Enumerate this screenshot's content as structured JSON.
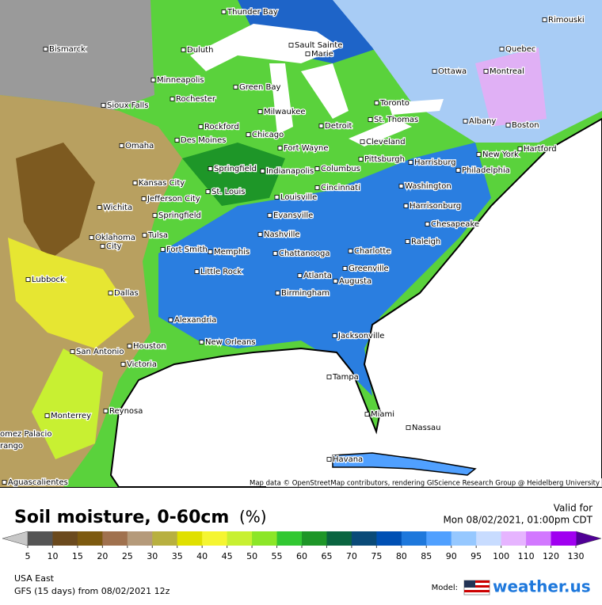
{
  "map": {
    "cities": [
      "Thunder Bay",
      "Bismarck",
      "Duluth",
      "Sault Sainte",
      "Marie",
      "Rimouski",
      "Quebec",
      "Ottawa",
      "Montreal",
      "Minneapolis",
      "Green Bay",
      "Rochester",
      "Sioux Falls",
      "Milwaukee",
      "Toronto",
      "Albany",
      "Boston",
      "Rockford",
      "Detroit",
      "St. Thomas",
      "Des Moines",
      "Chicago",
      "Cleveland",
      "Hartford",
      "Omaha",
      "Fort Wayne",
      "New York",
      "Pittsburgh",
      "Harrisburg",
      "Philadelphia",
      "Springfield",
      "Indianapolis",
      "Columbus",
      "Kansas City",
      "Cincinnati",
      "Washington",
      "St. Louis",
      "Louisville",
      "Jefferson City",
      "Wichita",
      "Springfield",
      "Evansville",
      "Harrisonburg",
      "Chesapeake",
      "Nashville",
      "Tulsa",
      "Oklahoma",
      "City",
      "Raleigh",
      "Fort Smith",
      "Memphis",
      "Chattanooga",
      "Charlotte",
      "Little Rock",
      "Greenville",
      "Atlanta",
      "Augusta",
      "Lubbock",
      "Dallas",
      "Birmingham",
      "Alexandria",
      "Houston",
      "New Orleans",
      "Jacksonville",
      "San Antonio",
      "Victoria",
      "Tampa",
      "Reynosa",
      "Monterrey",
      "Miami",
      "Nassau",
      "omez Palacio",
      "rango",
      "Havana",
      "Aguascalientes"
    ],
    "attribution": "Map data © OpenStreetMap contributors, rendering GIScience Research Group @ Heidelberg University"
  },
  "legend": {
    "title": "Soil moisture, 0-60cm",
    "unit": "(%)",
    "ticks": [
      5,
      10,
      15,
      20,
      25,
      30,
      35,
      40,
      45,
      50,
      55,
      60,
      65,
      70,
      75,
      80,
      85,
      90,
      95,
      100,
      110,
      120,
      130
    ],
    "colors": [
      "#c8c8c8",
      "#555555",
      "#6b4a1e",
      "#7d5a10",
      "#a0714e",
      "#b59a7a",
      "#b8b040",
      "#e0e000",
      "#f5f532",
      "#c8f032",
      "#8ce628",
      "#32c832",
      "#1e9628",
      "#0a6440",
      "#0a4a78",
      "#0050b4",
      "#1e78dc",
      "#50a0ff",
      "#96c8ff",
      "#c8dcff",
      "#e6b4ff",
      "#d278ff",
      "#a000f0",
      "#500096"
    ]
  },
  "valid_label": "Valid for",
  "valid_time": "Mon 08/02/2021, 01:00pm CDT",
  "region": "USA East",
  "model_run": "GFS (15 days) from 08/02/2021 12z",
  "model_label": "Model:",
  "brand": "weather.us"
}
